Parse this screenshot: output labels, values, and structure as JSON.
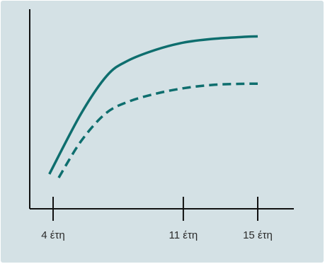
{
  "colors": {
    "background": "#d4e1e5",
    "axis": "#111111",
    "series": "#0e6e6e"
  },
  "chart_data": {
    "type": "line",
    "xlabel": "",
    "ylabel": "",
    "x_ticks": [
      {
        "value": 4,
        "label": "4 έτη"
      },
      {
        "value": 11,
        "label": "11 έτη"
      },
      {
        "value": 15,
        "label": "15 έτη"
      }
    ],
    "xlim": [
      3,
      16.5
    ],
    "ylim": [
      0,
      100
    ],
    "series": [
      {
        "style": "solid",
        "points": [
          [
            3.8,
            19
          ],
          [
            5.5,
            52
          ],
          [
            6.9,
            73
          ],
          [
            8,
            81
          ],
          [
            9.5,
            87
          ],
          [
            11,
            91
          ],
          [
            12.5,
            93
          ],
          [
            14,
            94
          ],
          [
            14.5,
            94.3
          ],
          [
            15,
            94.4
          ]
        ]
      },
      {
        "style": "dashed",
        "points": [
          [
            4.3,
            17
          ],
          [
            5.5,
            37
          ],
          [
            6.8,
            52
          ],
          [
            8,
            58.5
          ],
          [
            9.5,
            63
          ],
          [
            11,
            66
          ],
          [
            12.5,
            67.8
          ],
          [
            14,
            68.4
          ],
          [
            15,
            68.5
          ]
        ]
      }
    ]
  }
}
